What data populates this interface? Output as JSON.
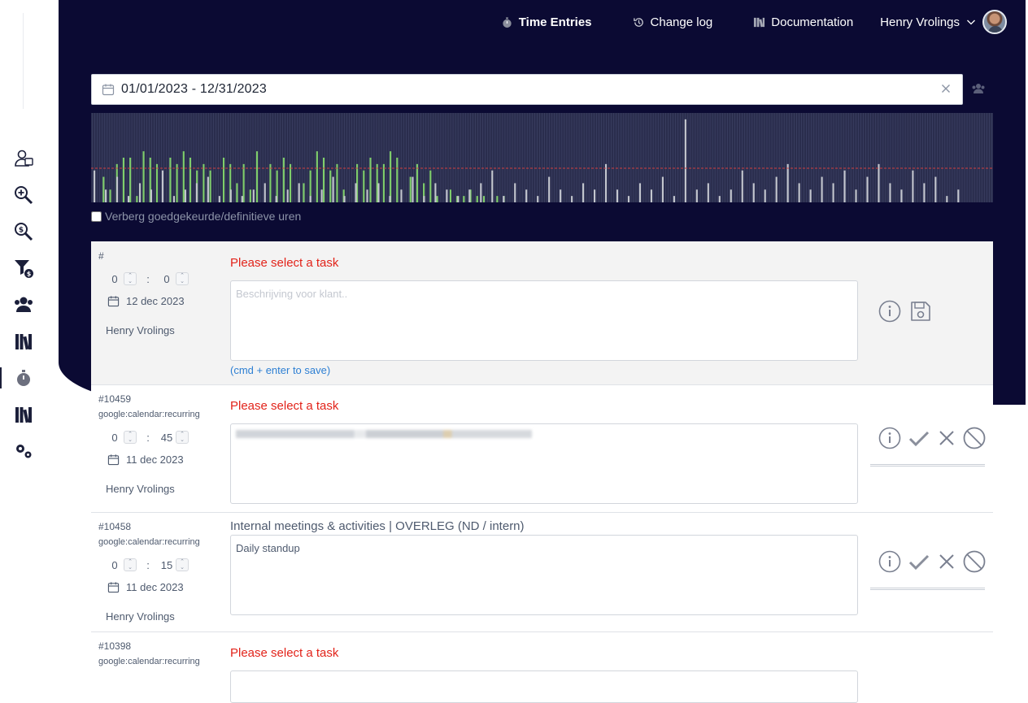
{
  "nav": {
    "time_entries": "Time Entries",
    "change_log": "Change log",
    "documentation": "Documentation",
    "user_name": "Henry Vrolings"
  },
  "filter": {
    "date_range": "01/01/2023  -  12/31/2023",
    "hide_approved_label": "Verberg goedgekeurde/definitieve uren"
  },
  "colors": {
    "background_dark": "#0b0a33",
    "chart_bg": "#2a2d4d",
    "green": "#7fce6b",
    "grey": "#c3c6ce",
    "red": "#e2231a",
    "link_blue": "#2d7fd3"
  },
  "sidebar_icons": [
    "user-lock-icon",
    "zoom-in-icon",
    "money-search-icon",
    "money-filter-icon",
    "users-icon",
    "books-icon",
    "stopwatch-icon",
    "books-icon",
    "gears-icon"
  ],
  "entries": [
    {
      "id": "#",
      "source": "",
      "hours": "0",
      "minutes": "0",
      "date": "12 dec 2023",
      "user": "Henry Vrolings",
      "task": "Please select a task",
      "task_missing": true,
      "description": "",
      "description_placeholder": "Beschrijving voor klant..",
      "hint": "(cmd + enter to save)"
    },
    {
      "id": "#10459",
      "source": "google:calendar:recurring",
      "hours": "0",
      "minutes": "45",
      "date": "11 dec 2023",
      "user": "Henry Vrolings",
      "task": "Please select a task",
      "task_missing": true,
      "description": ""
    },
    {
      "id": "#10458",
      "source": "google:calendar:recurring",
      "hours": "0",
      "minutes": "15",
      "date": "11 dec 2023",
      "user": "Henry Vrolings",
      "task": "Internal meetings & activities  |  OVERLEG (ND / intern)",
      "task_missing": false,
      "description": "Daily standup"
    },
    {
      "id": "#10398",
      "source": "google:calendar:recurring",
      "task": "Please select a task",
      "task_missing": true
    }
  ],
  "chart_data": {
    "type": "bar",
    "title": "",
    "xlabel": "",
    "ylabel": "",
    "x_range": [
      "01/01/2023",
      "12/31/2023"
    ],
    "threshold_line": "dashed red",
    "series": [
      {
        "color": "#7fce6b",
        "values": [
          0,
          4,
          2,
          6,
          7,
          7,
          1,
          8,
          7,
          6,
          0,
          7,
          6,
          8,
          7,
          5,
          6,
          5,
          0,
          7,
          6,
          3,
          6,
          2,
          8,
          0,
          6,
          5,
          7,
          6,
          0,
          3,
          5,
          8,
          7,
          5,
          6,
          2,
          0,
          6,
          5,
          7,
          6,
          6,
          8,
          7,
          0,
          4,
          6,
          3,
          5,
          1,
          0,
          2,
          1,
          1,
          2,
          1,
          1,
          0,
          1,
          1
        ]
      },
      {
        "color": "#c3c6ce",
        "values": [
          5,
          2,
          4,
          1,
          3,
          2,
          5,
          1,
          2,
          3,
          4,
          1,
          2,
          1,
          2,
          3,
          1,
          2,
          3,
          1,
          2,
          4,
          1,
          3,
          2,
          3,
          1,
          2,
          4,
          1,
          3,
          2,
          1,
          2,
          3,
          5,
          1,
          3,
          2,
          1,
          4,
          2,
          1,
          3,
          2,
          6,
          2,
          1,
          3,
          2,
          4,
          1,
          13,
          2,
          3,
          1,
          2,
          5,
          3,
          2,
          4,
          6,
          3,
          2,
          4,
          3,
          5,
          2,
          4,
          6,
          3,
          2,
          5,
          3,
          4,
          1,
          2
        ]
      }
    ]
  }
}
